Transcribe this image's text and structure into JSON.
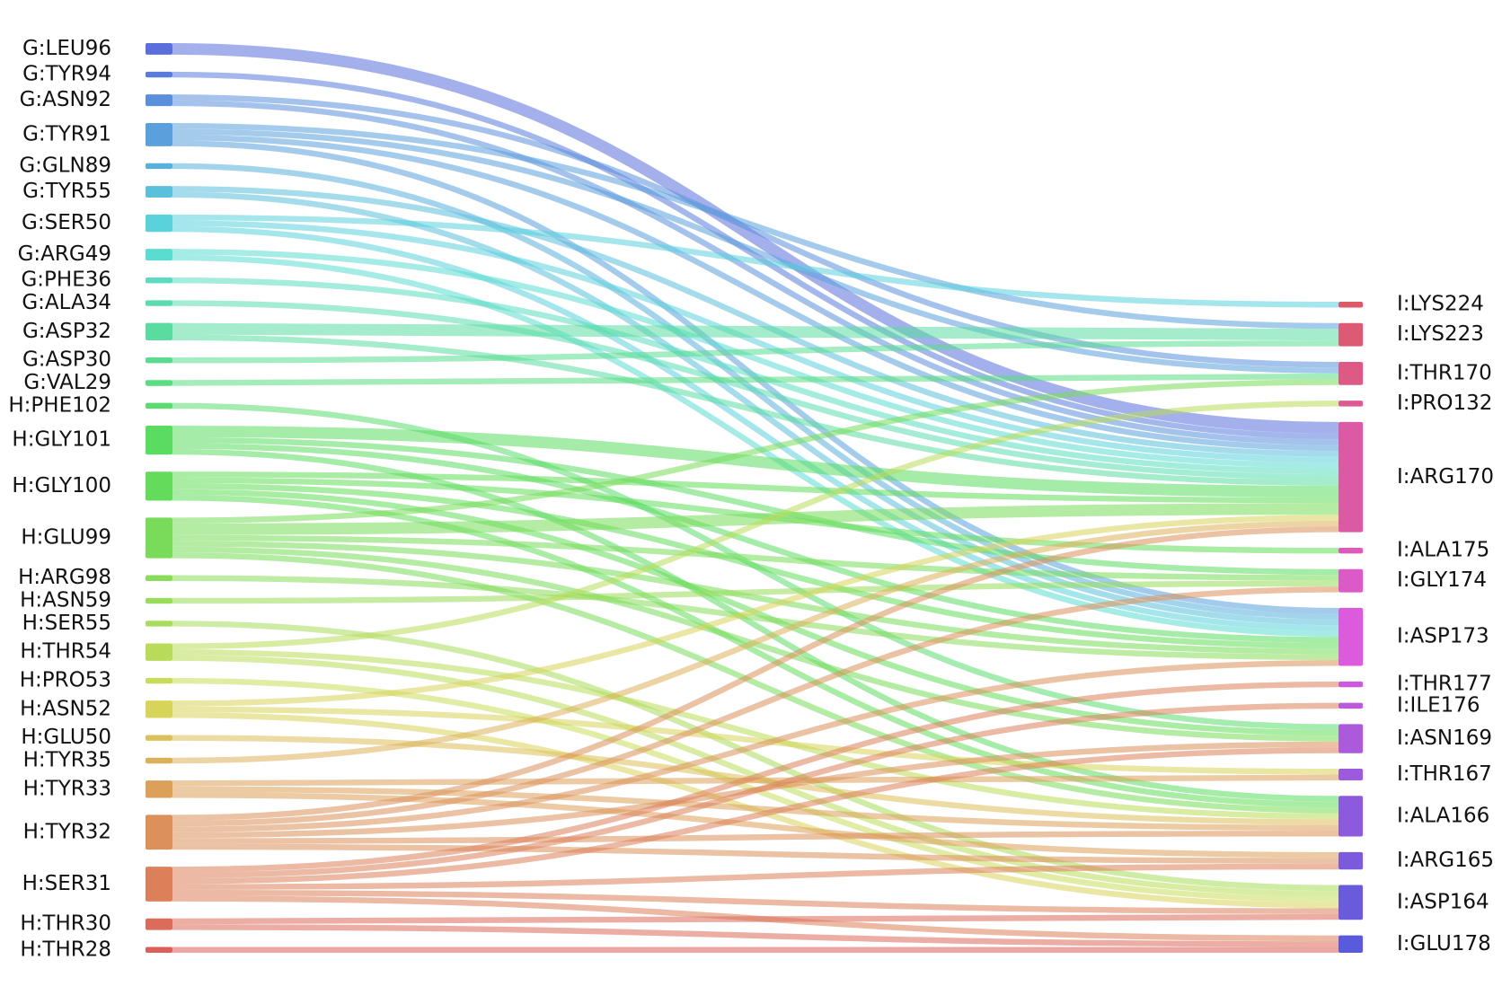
{
  "chart_data": {
    "type": "sankey",
    "left_nodes": [
      {
        "name": "G:LEU96",
        "color": "#5a6fdc"
      },
      {
        "name": "G:TYR94",
        "color": "#5a7bdc"
      },
      {
        "name": "G:ASN92",
        "color": "#5a8fdc"
      },
      {
        "name": "G:TYR91",
        "color": "#5aa0dc"
      },
      {
        "name": "G:GLN89",
        "color": "#5ab0dc"
      },
      {
        "name": "G:TYR55",
        "color": "#5ac0dc"
      },
      {
        "name": "G:SER50",
        "color": "#5ad2dc"
      },
      {
        "name": "G:ARG49",
        "color": "#5adcd0"
      },
      {
        "name": "G:PHE36",
        "color": "#5adcc0"
      },
      {
        "name": "G:ALA34",
        "color": "#5adcb0"
      },
      {
        "name": "G:ASP32",
        "color": "#5adca0"
      },
      {
        "name": "G:ASP30",
        "color": "#5adc90"
      },
      {
        "name": "G:VAL29",
        "color": "#5adc80"
      },
      {
        "name": "H:PHE102",
        "color": "#5adc70"
      },
      {
        "name": "H:GLY101",
        "color": "#5adc60"
      },
      {
        "name": "H:GLY100",
        "color": "#62dc5a"
      },
      {
        "name": "H:GLU99",
        "color": "#78dc5a"
      },
      {
        "name": "H:ARG98",
        "color": "#88dc5a"
      },
      {
        "name": "H:ASN59",
        "color": "#98dc5a"
      },
      {
        "name": "H:SER55",
        "color": "#a8dc5a"
      },
      {
        "name": "H:THR54",
        "color": "#b8dc5a"
      },
      {
        "name": "H:PRO53",
        "color": "#c8dc5a"
      },
      {
        "name": "H:ASN52",
        "color": "#d8d45a"
      },
      {
        "name": "H:GLU50",
        "color": "#dcc05a"
      },
      {
        "name": "H:TYR35",
        "color": "#dcb05a"
      },
      {
        "name": "H:TYR33",
        "color": "#dca05a"
      },
      {
        "name": "H:TYR32",
        "color": "#dc905a"
      },
      {
        "name": "H:SER31",
        "color": "#dc805a"
      },
      {
        "name": "H:THR30",
        "color": "#dc6c5a"
      },
      {
        "name": "H:THR28",
        "color": "#dc5f5a"
      }
    ],
    "right_nodes": [
      {
        "name": "I:LYS224",
        "color": "#dc5a68"
      },
      {
        "name": "I:LYS223",
        "color": "#dc5a74"
      },
      {
        "name": "I:THR170",
        "color": "#dc5a84"
      },
      {
        "name": "I:PRO132",
        "color": "#dc5a94"
      },
      {
        "name": "I:ARG170",
        "color": "#dc5aa4"
      },
      {
        "name": "I:ALA175",
        "color": "#dc5ab8"
      },
      {
        "name": "I:GLY174",
        "color": "#dc5ac8"
      },
      {
        "name": "I:ASP173",
        "color": "#dc5adc"
      },
      {
        "name": "I:THR177",
        "color": "#cc5adc"
      },
      {
        "name": "I:ILE176",
        "color": "#bc5adc"
      },
      {
        "name": "I:ASN169",
        "color": "#ac5adc"
      },
      {
        "name": "I:THR167",
        "color": "#9c5adc"
      },
      {
        "name": "I:ALA166",
        "color": "#8c5adc"
      },
      {
        "name": "I:ARG165",
        "color": "#7c5adc"
      },
      {
        "name": "I:ASP164",
        "color": "#6a5adc"
      },
      {
        "name": "I:GLU178",
        "color": "#5a5adc"
      }
    ],
    "links": [
      {
        "source": "G:LEU96",
        "target": "I:ARG170",
        "value": 2
      },
      {
        "source": "G:TYR94",
        "target": "I:ARG170",
        "value": 1
      },
      {
        "source": "G:ASN92",
        "target": "I:THR170",
        "value": 1
      },
      {
        "source": "G:ASN92",
        "target": "I:ARG170",
        "value": 1
      },
      {
        "source": "G:TYR91",
        "target": "I:LYS223",
        "value": 1
      },
      {
        "source": "G:TYR91",
        "target": "I:THR170",
        "value": 1
      },
      {
        "source": "G:TYR91",
        "target": "I:ARG170",
        "value": 1
      },
      {
        "source": "G:TYR91",
        "target": "I:ASP173",
        "value": 1
      },
      {
        "source": "G:GLN89",
        "target": "I:ASP173",
        "value": 1
      },
      {
        "source": "G:TYR55",
        "target": "I:ARG170",
        "value": 1
      },
      {
        "source": "G:TYR55",
        "target": "I:ASP173",
        "value": 1
      },
      {
        "source": "G:SER50",
        "target": "I:LYS224",
        "value": 1
      },
      {
        "source": "G:SER50",
        "target": "I:ARG170",
        "value": 1
      },
      {
        "source": "G:SER50",
        "target": "I:ASP173",
        "value": 1
      },
      {
        "source": "G:ARG49",
        "target": "I:ARG170",
        "value": 1
      },
      {
        "source": "G:ARG49",
        "target": "I:ASP173",
        "value": 1
      },
      {
        "source": "G:PHE36",
        "target": "I:ARG170",
        "value": 1
      },
      {
        "source": "G:ALA34",
        "target": "I:ARG170",
        "value": 1
      },
      {
        "source": "G:ASP32",
        "target": "I:LYS223",
        "value": 2
      },
      {
        "source": "G:ASP32",
        "target": "I:ARG170",
        "value": 1
      },
      {
        "source": "G:ASP30",
        "target": "I:LYS223",
        "value": 1
      },
      {
        "source": "G:VAL29",
        "target": "I:THR170",
        "value": 1
      },
      {
        "source": "H:PHE102",
        "target": "I:ASN169",
        "value": 1
      },
      {
        "source": "H:GLY101",
        "target": "I:ARG170",
        "value": 2
      },
      {
        "source": "H:GLY101",
        "target": "I:GLY174",
        "value": 1
      },
      {
        "source": "H:GLY101",
        "target": "I:ASP173",
        "value": 1
      },
      {
        "source": "H:GLY101",
        "target": "I:ALA166",
        "value": 1
      },
      {
        "source": "H:GLY100",
        "target": "I:ARG170",
        "value": 1
      },
      {
        "source": "H:GLY100",
        "target": "I:ALA175",
        "value": 1
      },
      {
        "source": "H:GLY100",
        "target": "I:ASP173",
        "value": 1
      },
      {
        "source": "H:GLY100",
        "target": "I:ASN169",
        "value": 1
      },
      {
        "source": "H:GLY100",
        "target": "I:ALA166",
        "value": 1
      },
      {
        "source": "H:GLU99",
        "target": "I:THR170",
        "value": 1
      },
      {
        "source": "H:GLU99",
        "target": "I:ARG170",
        "value": 2
      },
      {
        "source": "H:GLU99",
        "target": "I:GLY174",
        "value": 1
      },
      {
        "source": "H:GLU99",
        "target": "I:ASP173",
        "value": 1
      },
      {
        "source": "H:GLU99",
        "target": "I:ASN169",
        "value": 1
      },
      {
        "source": "H:GLU99",
        "target": "I:ALA166",
        "value": 1
      },
      {
        "source": "H:ARG98",
        "target": "I:ASP173",
        "value": 1
      },
      {
        "source": "H:ASN59",
        "target": "I:GLY174",
        "value": 1
      },
      {
        "source": "H:SER55",
        "target": "I:ASP164",
        "value": 1
      },
      {
        "source": "H:THR54",
        "target": "I:PRO132",
        "value": 1
      },
      {
        "source": "H:THR54",
        "target": "I:ALA166",
        "value": 1
      },
      {
        "source": "H:THR54",
        "target": "I:ASP164",
        "value": 1
      },
      {
        "source": "H:PRO53",
        "target": "I:ASP164",
        "value": 1
      },
      {
        "source": "H:ASN52",
        "target": "I:ARG170",
        "value": 1
      },
      {
        "source": "H:ASN52",
        "target": "I:THR167",
        "value": 1
      },
      {
        "source": "H:ASN52",
        "target": "I:ASP164",
        "value": 1
      },
      {
        "source": "H:GLU50",
        "target": "I:ALA166",
        "value": 1
      },
      {
        "source": "H:TYR35",
        "target": "I:ARG170",
        "value": 1
      },
      {
        "source": "H:TYR33",
        "target": "I:THR167",
        "value": 1
      },
      {
        "source": "H:TYR33",
        "target": "I:ALA166",
        "value": 1
      },
      {
        "source": "H:TYR33",
        "target": "I:ARG165",
        "value": 1
      },
      {
        "source": "H:TYR32",
        "target": "I:ARG170",
        "value": 1
      },
      {
        "source": "H:TYR32",
        "target": "I:GLY174",
        "value": 1
      },
      {
        "source": "H:TYR32",
        "target": "I:ASP173",
        "value": 1
      },
      {
        "source": "H:TYR32",
        "target": "I:ASN169",
        "value": 1
      },
      {
        "source": "H:TYR32",
        "target": "I:ALA166",
        "value": 1
      },
      {
        "source": "H:TYR32",
        "target": "I:ARG165",
        "value": 1
      },
      {
        "source": "H:SER31",
        "target": "I:THR177",
        "value": 1
      },
      {
        "source": "H:SER31",
        "target": "I:ILE176",
        "value": 1
      },
      {
        "source": "H:SER31",
        "target": "I:ASN169",
        "value": 1
      },
      {
        "source": "H:SER31",
        "target": "I:ARG165",
        "value": 1
      },
      {
        "source": "H:SER31",
        "target": "I:ASP164",
        "value": 1
      },
      {
        "source": "H:SER31",
        "target": "I:GLU178",
        "value": 1
      },
      {
        "source": "H:THR30",
        "target": "I:ASP164",
        "value": 1
      },
      {
        "source": "H:THR30",
        "target": "I:GLU178",
        "value": 1
      },
      {
        "source": "H:THR28",
        "target": "I:GLU178",
        "value": 1
      }
    ]
  }
}
